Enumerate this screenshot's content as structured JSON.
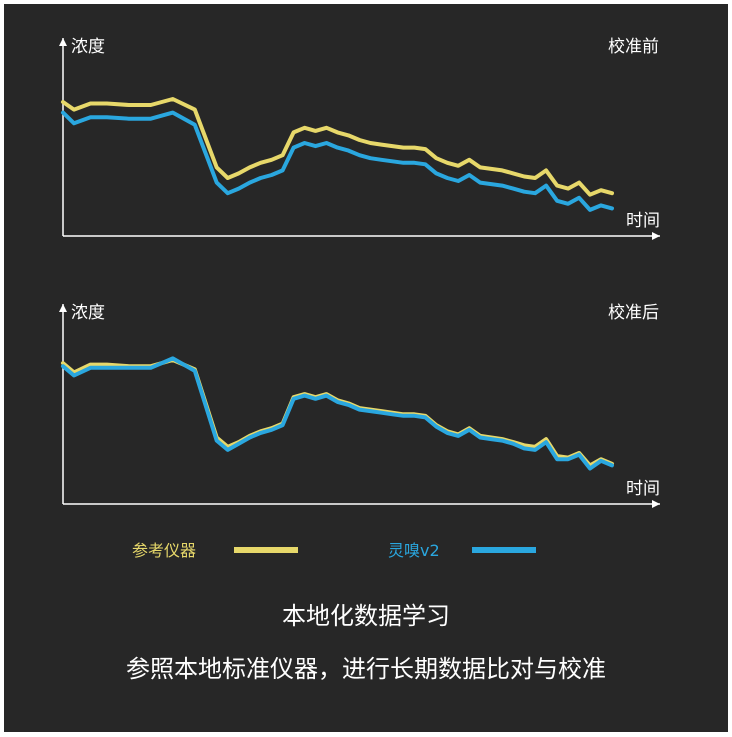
{
  "colors": {
    "background": "#272727",
    "reference": "#e7d86a",
    "device": "#2aa7df",
    "axis": "#ffffff"
  },
  "legend": {
    "reference_label": "参考仪器",
    "device_label": "灵嗅v2"
  },
  "caption": {
    "line1": "本地化数据学习",
    "line2": "参照本地标准仪器，进行长期数据比对与校准"
  },
  "chart_data": [
    {
      "type": "line",
      "title": "校准前",
      "xlabel": "时间",
      "ylabel": "浓度",
      "grid": false,
      "ylim": [
        0,
        100
      ],
      "x": [
        0,
        2,
        5,
        8,
        12,
        16,
        20,
        24,
        28,
        30,
        32,
        34,
        36,
        38,
        40,
        42,
        44,
        46,
        48,
        50,
        52,
        54,
        56,
        58,
        60,
        62,
        64,
        66,
        68,
        70,
        72,
        74,
        76,
        78,
        80,
        82,
        84,
        86,
        88,
        90,
        92,
        94,
        96,
        98,
        100
      ],
      "series": [
        {
          "name": "参考仪器",
          "values": [
            75,
            70,
            74,
            74,
            73,
            73,
            77,
            70,
            32,
            25,
            28,
            32,
            35,
            37,
            40,
            55,
            58,
            56,
            58,
            55,
            53,
            50,
            48,
            47,
            46,
            45,
            45,
            44,
            38,
            35,
            33,
            37,
            32,
            31,
            30,
            28,
            26,
            25,
            30,
            20,
            18,
            22,
            14,
            17,
            15
          ]
        },
        {
          "name": "灵嗅v2",
          "values": [
            68,
            61,
            65,
            65,
            64,
            64,
            68,
            60,
            22,
            15,
            18,
            22,
            25,
            27,
            30,
            45,
            48,
            46,
            48,
            45,
            43,
            40,
            38,
            37,
            36,
            35,
            35,
            34,
            28,
            25,
            23,
            27,
            22,
            21,
            20,
            18,
            16,
            15,
            20,
            10,
            8,
            12,
            4,
            7,
            5
          ]
        }
      ]
    },
    {
      "type": "line",
      "title": "校准后",
      "xlabel": "时间",
      "ylabel": "浓度",
      "grid": false,
      "ylim": [
        0,
        100
      ],
      "x": [
        0,
        2,
        5,
        8,
        12,
        16,
        20,
        24,
        28,
        30,
        32,
        34,
        36,
        38,
        40,
        42,
        44,
        46,
        48,
        50,
        52,
        54,
        56,
        58,
        60,
        62,
        64,
        66,
        68,
        70,
        72,
        74,
        76,
        78,
        80,
        82,
        84,
        86,
        88,
        90,
        92,
        94,
        96,
        98,
        100
      ],
      "series": [
        {
          "name": "参考仪器",
          "values": [
            78,
            72,
            77,
            77,
            76,
            76,
            80,
            74,
            30,
            24,
            27,
            31,
            34,
            36,
            39,
            56,
            58,
            56,
            58,
            54,
            52,
            49,
            48,
            47,
            46,
            45,
            45,
            44,
            38,
            34,
            32,
            36,
            31,
            30,
            29,
            27,
            25,
            24,
            29,
            18,
            17,
            20,
            12,
            16,
            13
          ]
        },
        {
          "name": "灵嗅v2",
          "values": [
            76,
            70,
            75,
            75,
            75,
            75,
            81,
            73,
            28,
            22,
            26,
            30,
            33,
            35,
            38,
            55,
            57,
            55,
            57,
            53,
            51,
            48,
            47,
            46,
            45,
            44,
            44,
            43,
            37,
            33,
            31,
            35,
            30,
            29,
            28,
            26,
            23,
            22,
            27,
            16,
            16,
            19,
            10,
            15,
            12
          ]
        }
      ]
    }
  ]
}
